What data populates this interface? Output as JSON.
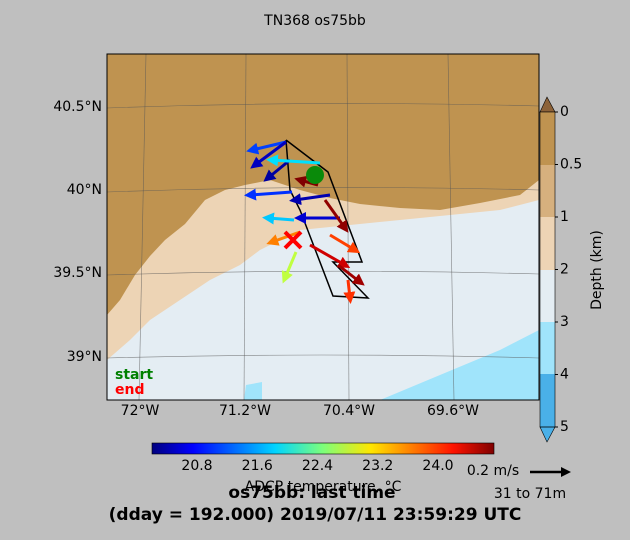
{
  "title": "TN368 os75bb",
  "map": {
    "lat_labels": [
      "40.5°N",
      "40°N",
      "39.5°N",
      "39°N"
    ],
    "lon_labels": [
      "72°W",
      "71.2°W",
      "70.4°W",
      "69.6°W"
    ],
    "legend": {
      "start": "start",
      "end": "end"
    }
  },
  "depth_colorbar": {
    "label": "Depth (km)",
    "ticks": [
      "0",
      "0.5",
      "1",
      "2",
      "3",
      "4",
      "5"
    ]
  },
  "temperature_colorbar": {
    "label": "ADCP temperature, °C",
    "ticks": [
      "20.8",
      "21.6",
      "22.4",
      "23.2",
      "24.0"
    ]
  },
  "scale": {
    "arrow_label": "0.2 m/s",
    "depth_range": "31 to 71m"
  },
  "footer": {
    "line1": "os75bb: last time",
    "line2": "(dday = 192.000) 2019/07/11 23:59:29 UTC"
  }
}
